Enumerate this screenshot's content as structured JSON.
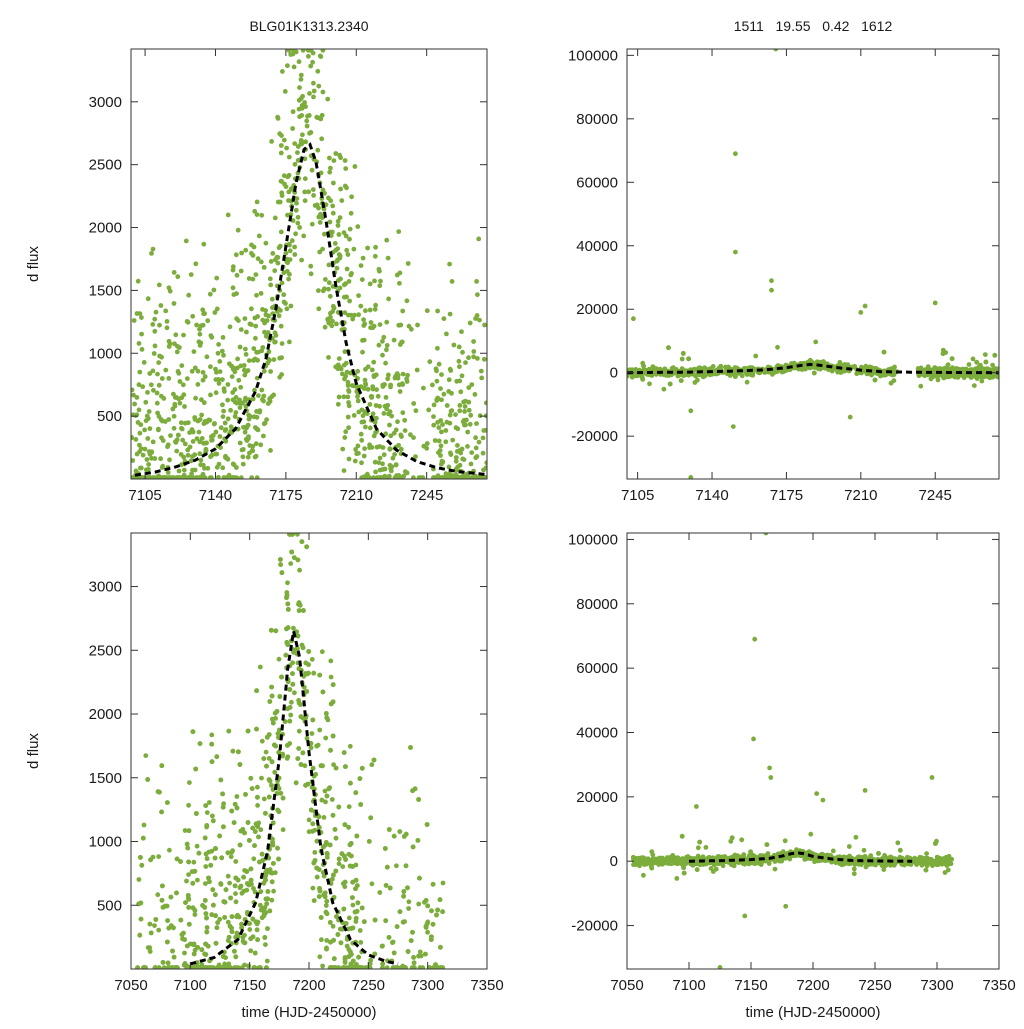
{
  "header": {
    "object_id": "BLG01K1313.2340",
    "params": "1511   19.55   0.42   1612"
  },
  "colors": {
    "points": "#7cad3c",
    "model": "#000000",
    "axis": "#333333"
  },
  "chart_data": [
    {
      "type": "scatter",
      "panel": "top-left",
      "title": "",
      "xlabel": "",
      "ylabel": "d flux",
      "xlim": [
        7098,
        7275
      ],
      "ylim": [
        0,
        3420
      ],
      "x_ticks": [
        7105,
        7140,
        7175,
        7210,
        7245
      ],
      "y_ticks": [
        500,
        1000,
        1500,
        2000,
        2500,
        3000
      ],
      "grid": false,
      "series": [
        {
          "kind": "points",
          "density": "dense scatter; broad excess of points between 7165 and 7205"
        },
        {
          "kind": "model-line",
          "style": "dashed",
          "x": [
            7100,
            7110,
            7120,
            7130,
            7140,
            7150,
            7160,
            7165,
            7170,
            7175,
            7180,
            7184,
            7187,
            7190,
            7195,
            7200,
            7205,
            7210,
            7220,
            7230,
            7240,
            7250,
            7260,
            7275
          ],
          "y": [
            30,
            55,
            95,
            150,
            240,
            400,
            700,
            950,
            1350,
            1850,
            2350,
            2620,
            2660,
            2520,
            2050,
            1520,
            1080,
            760,
            400,
            230,
            140,
            90,
            60,
            35
          ]
        }
      ]
    },
    {
      "type": "scatter",
      "panel": "top-right",
      "title": "",
      "xlabel": "",
      "ylabel": "",
      "xlim": [
        7100,
        7275
      ],
      "ylim": [
        -33500,
        102000
      ],
      "x_ticks": [
        7105,
        7140,
        7175,
        7210,
        7245
      ],
      "y_ticks": [
        -20000,
        0,
        20000,
        40000,
        60000,
        80000,
        100000
      ],
      "grid": false,
      "series": [
        {
          "kind": "points",
          "density": "dense band near 0 with gap around 7227-7237; outliers up to 102000 near 7170"
        },
        {
          "kind": "model-line",
          "style": "dashed",
          "x": [
            7100,
            7130,
            7150,
            7165,
            7175,
            7182,
            7186,
            7190,
            7200,
            7210,
            7220,
            7240,
            7275
          ],
          "y": [
            0,
            200,
            500,
            900,
            1600,
            2300,
            2600,
            2400,
            1500,
            800,
            300,
            100,
            0
          ]
        }
      ]
    },
    {
      "type": "scatter",
      "panel": "bottom-left",
      "title": "",
      "xlabel": "time (HJD-2450000)",
      "ylabel": "d flux",
      "xlim": [
        7050,
        7350
      ],
      "ylim": [
        0,
        3420
      ],
      "x_ticks": [
        7050,
        7100,
        7150,
        7200,
        7250,
        7300,
        7350
      ],
      "y_ticks": [
        500,
        1000,
        1500,
        2000,
        2500,
        3000
      ],
      "grid": false,
      "series": [
        {
          "kind": "points",
          "density": "points spanning 7055-7312, densest 7100-7240"
        },
        {
          "kind": "model-line",
          "style": "dashed",
          "x": [
            7100,
            7120,
            7140,
            7155,
            7165,
            7175,
            7182,
            7187,
            7192,
            7200,
            7210,
            7220,
            7235,
            7250,
            7265,
            7275
          ],
          "y": [
            40,
            90,
            230,
            520,
            920,
            1650,
            2350,
            2650,
            2450,
            1700,
            950,
            520,
            230,
            110,
            60,
            40
          ]
        }
      ]
    },
    {
      "type": "scatter",
      "panel": "bottom-right",
      "title": "",
      "xlabel": "time (HJD-2450000)",
      "ylabel": "",
      "xlim": [
        7050,
        7350
      ],
      "ylim": [
        -33500,
        102000
      ],
      "x_ticks": [
        7050,
        7100,
        7150,
        7200,
        7250,
        7300,
        7350
      ],
      "y_ticks": [
        -20000,
        0,
        20000,
        40000,
        60000,
        80000,
        100000
      ],
      "grid": false,
      "series": [
        {
          "kind": "points",
          "density": "dense band near 0 from 7055 to 7312; outliers near 7150-7170 up to 102000"
        },
        {
          "kind": "model-line",
          "style": "dashed",
          "x": [
            7100,
            7130,
            7150,
            7165,
            7175,
            7182,
            7187,
            7192,
            7200,
            7215,
            7230,
            7250,
            7280
          ],
          "y": [
            0,
            200,
            500,
            900,
            1600,
            2300,
            2600,
            2400,
            1500,
            700,
            250,
            80,
            0
          ]
        }
      ]
    }
  ]
}
